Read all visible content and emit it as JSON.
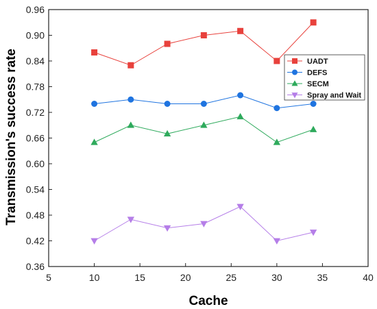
{
  "chart_data": {
    "type": "line",
    "title": "",
    "xlabel": "Cache",
    "ylabel": "Transmission's success rate",
    "xlim": [
      5,
      40
    ],
    "ylim": [
      0.36,
      0.96
    ],
    "x_ticks": [
      5,
      10,
      15,
      20,
      25,
      30,
      35,
      40
    ],
    "y_ticks": [
      0.36,
      0.42,
      0.48,
      0.54,
      0.6,
      0.66,
      0.72,
      0.78,
      0.84,
      0.9,
      0.96
    ],
    "x_tick_labels": [
      "5",
      "10",
      "15",
      "20",
      "25",
      "30",
      "35",
      "40"
    ],
    "y_tick_labels": [
      "0.36",
      "0.42",
      "0.48",
      "0.54",
      "0.60",
      "0.66",
      "0.72",
      "0.78",
      "0.84",
      "0.90",
      "0.96"
    ],
    "grid": false,
    "legend_position": "right",
    "x": [
      10,
      14,
      18,
      22,
      26,
      30,
      34
    ],
    "series": [
      {
        "name": "UADT",
        "marker": "square",
        "color": "#e8413c",
        "values": [
          0.86,
          0.83,
          0.88,
          0.9,
          0.91,
          0.84,
          0.93
        ]
      },
      {
        "name": "DEFS",
        "marker": "circle",
        "color": "#1f74e0",
        "values": [
          0.74,
          0.75,
          0.74,
          0.74,
          0.76,
          0.73,
          0.74
        ]
      },
      {
        "name": "SECM",
        "marker": "triangle-up",
        "color": "#2eaa5c",
        "values": [
          0.65,
          0.69,
          0.67,
          0.69,
          0.71,
          0.65,
          0.68
        ]
      },
      {
        "name": "Spray and Wait",
        "marker": "triangle-down",
        "color": "#b57ee8",
        "values": [
          0.42,
          0.47,
          0.45,
          0.46,
          0.5,
          0.42,
          0.44
        ]
      }
    ]
  }
}
